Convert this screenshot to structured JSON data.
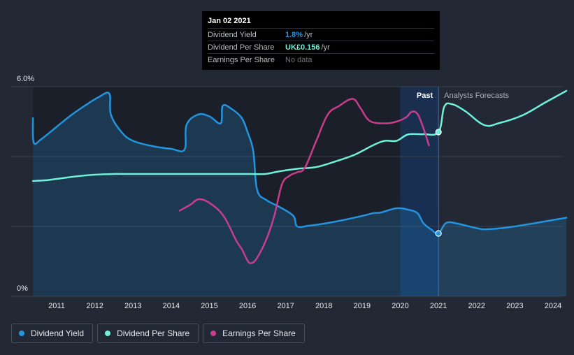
{
  "tooltip": {
    "date": "Jan 02 2021",
    "rows": [
      {
        "label": "Dividend Yield",
        "value": "1.8%",
        "unit": "/yr",
        "color": "#2394df"
      },
      {
        "label": "Dividend Per Share",
        "value": "UK£0.156",
        "unit": "/yr",
        "color": "#6ff0d8"
      },
      {
        "label": "Earnings Per Share",
        "value": "No data",
        "unit": "",
        "color": "#6e747d"
      }
    ]
  },
  "segments": {
    "past": "Past",
    "forecast": "Analysts Forecasts"
  },
  "legend": [
    {
      "label": "Dividend Yield",
      "color": "#2394df"
    },
    {
      "label": "Dividend Per Share",
      "color": "#6ff0d8"
    },
    {
      "label": "Earnings Per Share",
      "color": "#c83e8c"
    }
  ],
  "chart_data": {
    "type": "line",
    "xlim": [
      2010.35,
      2024.35
    ],
    "ylim": [
      0,
      6.0
    ],
    "y_tick_labels": [
      {
        "value": 0,
        "label": "0%"
      },
      {
        "value": 6.0,
        "label": "6.0%"
      }
    ],
    "x_ticks": [
      2011,
      2012,
      2013,
      2014,
      2015,
      2016,
      2017,
      2018,
      2019,
      2020,
      2021,
      2022,
      2023,
      2024
    ],
    "past_end": 2021.0,
    "highlight_start": 2020.0,
    "grid": true,
    "series": [
      {
        "name": "Dividend Yield",
        "color": "#2394df",
        "area": true,
        "points": [
          [
            2010.38,
            5.1
          ],
          [
            2010.4,
            4.4
          ],
          [
            2010.6,
            4.5
          ],
          [
            2011.0,
            4.85
          ],
          [
            2011.4,
            5.2
          ],
          [
            2011.8,
            5.5
          ],
          [
            2012.1,
            5.7
          ],
          [
            2012.38,
            5.8
          ],
          [
            2012.42,
            5.2
          ],
          [
            2012.7,
            4.7
          ],
          [
            2013.0,
            4.45
          ],
          [
            2013.5,
            4.3
          ],
          [
            2014.0,
            4.22
          ],
          [
            2014.35,
            4.2
          ],
          [
            2014.4,
            4.9
          ],
          [
            2014.7,
            5.2
          ],
          [
            2015.0,
            5.15
          ],
          [
            2015.3,
            4.95
          ],
          [
            2015.35,
            5.45
          ],
          [
            2015.6,
            5.35
          ],
          [
            2015.85,
            5.1
          ],
          [
            2016.0,
            4.7
          ],
          [
            2016.15,
            4.15
          ],
          [
            2016.25,
            3.05
          ],
          [
            2016.5,
            2.75
          ],
          [
            2016.85,
            2.55
          ],
          [
            2017.2,
            2.3
          ],
          [
            2017.3,
            2.0
          ],
          [
            2017.6,
            2.02
          ],
          [
            2018.0,
            2.08
          ],
          [
            2018.5,
            2.18
          ],
          [
            2019.0,
            2.3
          ],
          [
            2019.3,
            2.38
          ],
          [
            2019.5,
            2.4
          ],
          [
            2019.9,
            2.52
          ],
          [
            2020.2,
            2.48
          ],
          [
            2020.45,
            2.38
          ],
          [
            2020.6,
            2.1
          ],
          [
            2020.8,
            1.92
          ],
          [
            2021.0,
            1.8
          ],
          [
            2021.2,
            2.1
          ],
          [
            2021.5,
            2.08
          ],
          [
            2022.0,
            1.95
          ],
          [
            2022.3,
            1.92
          ],
          [
            2023.0,
            2.0
          ],
          [
            2024.35,
            2.25
          ]
        ]
      },
      {
        "name": "Dividend Per Share",
        "color": "#6ff0d8",
        "area": false,
        "points": [
          [
            2010.38,
            3.3
          ],
          [
            2010.7,
            3.32
          ],
          [
            2011.0,
            3.36
          ],
          [
            2011.5,
            3.43
          ],
          [
            2012.0,
            3.48
          ],
          [
            2012.5,
            3.5
          ],
          [
            2013.0,
            3.5
          ],
          [
            2014.0,
            3.5
          ],
          [
            2015.0,
            3.5
          ],
          [
            2016.0,
            3.5
          ],
          [
            2016.45,
            3.5
          ],
          [
            2016.8,
            3.57
          ],
          [
            2017.3,
            3.65
          ],
          [
            2017.8,
            3.7
          ],
          [
            2018.3,
            3.86
          ],
          [
            2018.8,
            4.05
          ],
          [
            2019.3,
            4.33
          ],
          [
            2019.6,
            4.45
          ],
          [
            2019.9,
            4.45
          ],
          [
            2020.2,
            4.63
          ],
          [
            2020.6,
            4.64
          ],
          [
            2021.0,
            4.7
          ],
          [
            2021.15,
            5.42
          ],
          [
            2021.35,
            5.5
          ],
          [
            2021.7,
            5.3
          ],
          [
            2022.2,
            4.9
          ],
          [
            2022.6,
            4.96
          ],
          [
            2023.2,
            5.18
          ],
          [
            2023.8,
            5.55
          ],
          [
            2024.35,
            5.88
          ]
        ]
      },
      {
        "name": "Earnings Per Share",
        "color": "#c83e8c",
        "area": false,
        "points": [
          [
            2014.22,
            2.45
          ],
          [
            2014.5,
            2.62
          ],
          [
            2014.75,
            2.78
          ],
          [
            2015.1,
            2.6
          ],
          [
            2015.4,
            2.25
          ],
          [
            2015.7,
            1.6
          ],
          [
            2015.85,
            1.35
          ],
          [
            2016.0,
            1.02
          ],
          [
            2016.1,
            0.95
          ],
          [
            2016.25,
            1.1
          ],
          [
            2016.5,
            1.65
          ],
          [
            2016.7,
            2.3
          ],
          [
            2016.9,
            3.2
          ],
          [
            2017.1,
            3.45
          ],
          [
            2017.3,
            3.55
          ],
          [
            2017.5,
            3.68
          ],
          [
            2017.8,
            4.45
          ],
          [
            2018.1,
            5.2
          ],
          [
            2018.4,
            5.45
          ],
          [
            2018.75,
            5.65
          ],
          [
            2018.95,
            5.4
          ],
          [
            2019.2,
            5.02
          ],
          [
            2019.6,
            4.95
          ],
          [
            2019.9,
            5.0
          ],
          [
            2020.15,
            5.12
          ],
          [
            2020.3,
            5.28
          ],
          [
            2020.45,
            5.22
          ],
          [
            2020.6,
            4.83
          ],
          [
            2020.75,
            4.32
          ]
        ]
      }
    ],
    "markers": [
      {
        "series": "Dividend Yield",
        "x": 2021.0,
        "y": 1.8
      },
      {
        "series": "Dividend Per Share",
        "x": 2021.0,
        "y": 4.7
      }
    ]
  }
}
